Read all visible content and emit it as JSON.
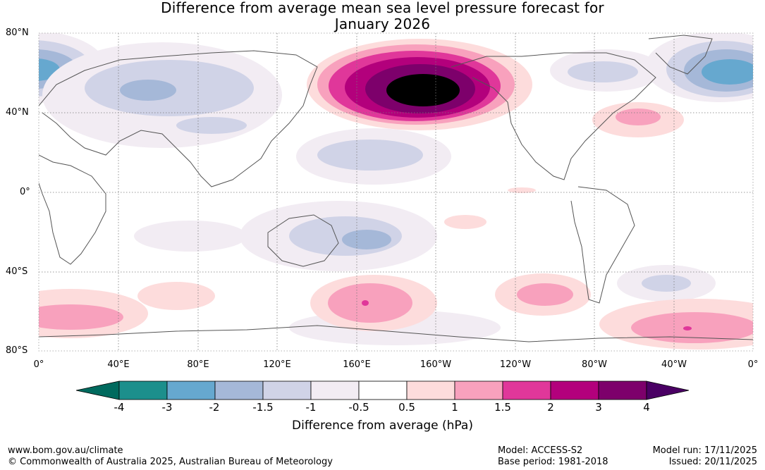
{
  "title": {
    "line1": "Difference from average mean sea level pressure forecast for",
    "line2": "January 2026"
  },
  "map": {
    "lat_labels": [
      "80°N",
      "40°N",
      "0°",
      "40°S",
      "80°S"
    ],
    "lon_labels": [
      "0°",
      "40°E",
      "80°E",
      "120°E",
      "160°E",
      "160°W",
      "120°W",
      "80°W",
      "40°W",
      "0°"
    ],
    "features": [
      "strong positive anomaly over the North Pacific / Aleutians",
      "negative anomaly over Greenland and the North Atlantic",
      "negative anomaly over Siberia and the Arctic",
      "positive anomalies in the Southern Ocean"
    ]
  },
  "colorbar": {
    "tick_labels": [
      "-4",
      "-3",
      "-2",
      "-1.5",
      "-1",
      "-0.5",
      "0.5",
      "1",
      "1.5",
      "2",
      "3",
      "4"
    ],
    "colors": [
      "#1c8f8c",
      "#66a8cf",
      "#a5b8d8",
      "#d0d3e7",
      "#f2ecf3",
      "#ffffff",
      "#fddcdc",
      "#f8a1bd",
      "#e0379a",
      "#b3007c",
      "#7d006b"
    ],
    "low_extend_color": "#006a5e",
    "high_extend_color": "#4a0064",
    "title": "Difference from average (hPa)"
  },
  "footer": {
    "website": "www.bom.gov.au/climate",
    "copyright": "© Commonwealth of Australia 2025, Australian Bureau of Meteorology",
    "model": "Model: ACCESS-S2",
    "base_period": "Base period: 1981-2018",
    "model_run": "Model run: 17/11/2025",
    "issued": "Issued: 20/11/2025"
  }
}
